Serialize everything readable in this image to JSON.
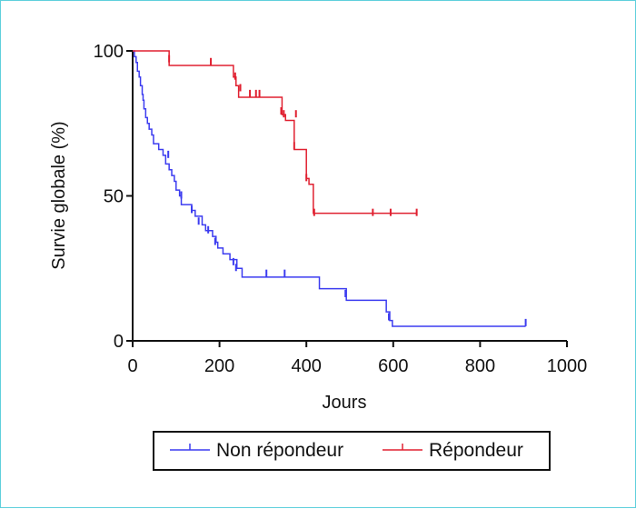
{
  "chart_data": {
    "type": "line",
    "xlabel": "Jours",
    "ylabel": "Survie globale (%)",
    "xlim": [
      0,
      1000
    ],
    "ylim": [
      0,
      100
    ],
    "xticks": [
      0,
      200,
      400,
      600,
      800,
      1000
    ],
    "yticks": [
      0,
      50,
      100
    ],
    "grid": false,
    "legend_position": "bottom",
    "series": [
      {
        "name": "Non répondeur",
        "color": "#3c3cf0",
        "steps": [
          [
            0,
            100
          ],
          [
            4,
            98
          ],
          [
            8,
            96
          ],
          [
            11,
            93
          ],
          [
            15,
            91
          ],
          [
            18,
            88
          ],
          [
            22,
            85
          ],
          [
            24,
            83
          ],
          [
            26,
            80
          ],
          [
            30,
            77
          ],
          [
            34,
            75
          ],
          [
            38,
            73
          ],
          [
            44,
            71
          ],
          [
            48,
            68
          ],
          [
            60,
            66
          ],
          [
            70,
            64
          ],
          [
            76,
            61
          ],
          [
            84,
            59
          ],
          [
            90,
            57
          ],
          [
            96,
            55
          ],
          [
            100,
            52
          ],
          [
            108,
            50
          ],
          [
            112,
            47
          ],
          [
            136,
            45
          ],
          [
            144,
            43
          ],
          [
            160,
            40
          ],
          [
            168,
            38
          ],
          [
            184,
            36
          ],
          [
            192,
            34
          ],
          [
            196,
            32
          ],
          [
            208,
            30
          ],
          [
            224,
            28
          ],
          [
            240,
            25
          ],
          [
            252,
            22
          ],
          [
            430,
            18
          ],
          [
            492,
            14
          ],
          [
            584,
            10
          ],
          [
            592,
            7
          ],
          [
            598,
            5
          ],
          [
            905,
            5
          ]
        ],
        "censored": [
          [
            82,
            64
          ],
          [
            112,
            50
          ],
          [
            136,
            45
          ],
          [
            152,
            41
          ],
          [
            174,
            38
          ],
          [
            190,
            34
          ],
          [
            232,
            27
          ],
          [
            238,
            25
          ],
          [
            308,
            23
          ],
          [
            350,
            23
          ],
          [
            490,
            16
          ],
          [
            590,
            8
          ],
          [
            905,
            6
          ]
        ]
      },
      {
        "name": "Répondeur",
        "color": "#e02030",
        "steps": [
          [
            0,
            100
          ],
          [
            84,
            95
          ],
          [
            232,
            91
          ],
          [
            238,
            88
          ],
          [
            244,
            84
          ],
          [
            344,
            78
          ],
          [
            352,
            76
          ],
          [
            372,
            66
          ],
          [
            400,
            56
          ],
          [
            406,
            54
          ],
          [
            416,
            44
          ],
          [
            655,
            44
          ]
        ],
        "censored": [
          [
            84,
            97
          ],
          [
            180,
            96
          ],
          [
            236,
            91
          ],
          [
            248,
            87
          ],
          [
            270,
            85
          ],
          [
            284,
            85
          ],
          [
            292,
            85
          ],
          [
            342,
            79
          ],
          [
            348,
            78
          ],
          [
            376,
            78
          ],
          [
            372,
            67
          ],
          [
            400,
            56
          ],
          [
            418,
            44
          ],
          [
            553,
            44
          ],
          [
            594,
            44
          ],
          [
            654,
            44
          ]
        ]
      }
    ]
  }
}
